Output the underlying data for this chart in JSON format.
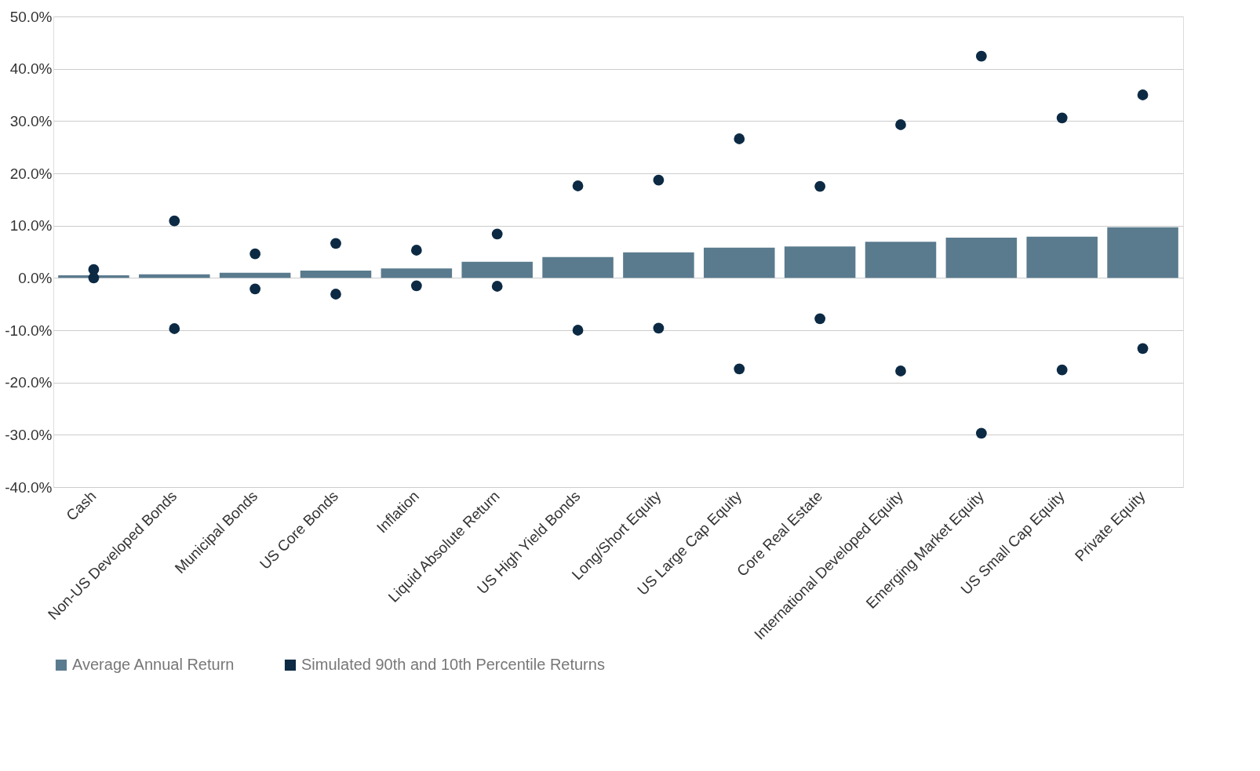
{
  "chart_data": {
    "type": "bar",
    "categories": [
      "Cash",
      "Non-US Developed Bonds",
      "Municipal Bonds",
      "US Core Bonds",
      "Inflation",
      "Liquid Absolute Return",
      "US High Yield Bonds",
      "Long/Short Equity",
      "US Large Cap Equity",
      "Core Real Estate",
      "International Developed Equity",
      "Emerging Market Equity",
      "US Small Cap Equity",
      "Private Equity"
    ],
    "series": [
      {
        "name": "Average Annual Return",
        "color": "#5a7b8e",
        "values": [
          0.5,
          0.7,
          1.0,
          1.4,
          1.8,
          3.1,
          4.0,
          4.9,
          5.8,
          6.0,
          6.9,
          7.7,
          7.9,
          9.7
        ]
      },
      {
        "name": "Simulated 90th and 10th Percentile Returns",
        "type": "scatter",
        "color": "#0c2a44",
        "x": [
          "Cash",
          "Cash",
          "Non-US Developed Bonds",
          "Non-US Developed Bonds",
          "Municipal Bonds",
          "Municipal Bonds",
          "US Core Bonds",
          "US Core Bonds",
          "Inflation",
          "Inflation",
          "Liquid Absolute Return",
          "Liquid Absolute Return",
          "US High Yield Bonds",
          "US High Yield Bonds",
          "Long/Short Equity",
          "Long/Short Equity",
          "US Large Cap Equity",
          "US Large Cap Equity",
          "Core Real Estate",
          "Core Real Estate",
          "International Developed Equity",
          "International Developed Equity",
          "Emerging Market Equity",
          "Emerging Market Equity",
          "US Small Cap Equity",
          "US Small Cap Equity",
          "Private Equity",
          "Private Equity"
        ],
        "values": [
          1.6,
          0.0,
          10.9,
          -9.7,
          4.6,
          -2.1,
          6.6,
          -3.1,
          5.3,
          -1.5,
          8.4,
          -1.6,
          17.6,
          -10.0,
          18.7,
          -9.6,
          26.6,
          -17.4,
          17.5,
          -7.8,
          29.3,
          -17.8,
          42.4,
          -29.7,
          30.6,
          -17.6,
          35.0,
          -13.5
        ]
      }
    ],
    "ylim": [
      -40,
      50
    ],
    "yticks": [
      {
        "value": -40,
        "label": "-40.0%"
      },
      {
        "value": -30,
        "label": "-30.0%"
      },
      {
        "value": -20,
        "label": "-20.0%"
      },
      {
        "value": -10,
        "label": "-10.0%"
      },
      {
        "value": 0,
        "label": "0.0%"
      },
      {
        "value": 10,
        "label": "10.0%"
      },
      {
        "value": 20,
        "label": "20.0%"
      },
      {
        "value": 30,
        "label": "30.0%"
      },
      {
        "value": 40,
        "label": "40.0%"
      },
      {
        "value": 50,
        "label": "50.0%"
      }
    ],
    "grid": "y",
    "legend": "bottom",
    "marker": "circle"
  }
}
